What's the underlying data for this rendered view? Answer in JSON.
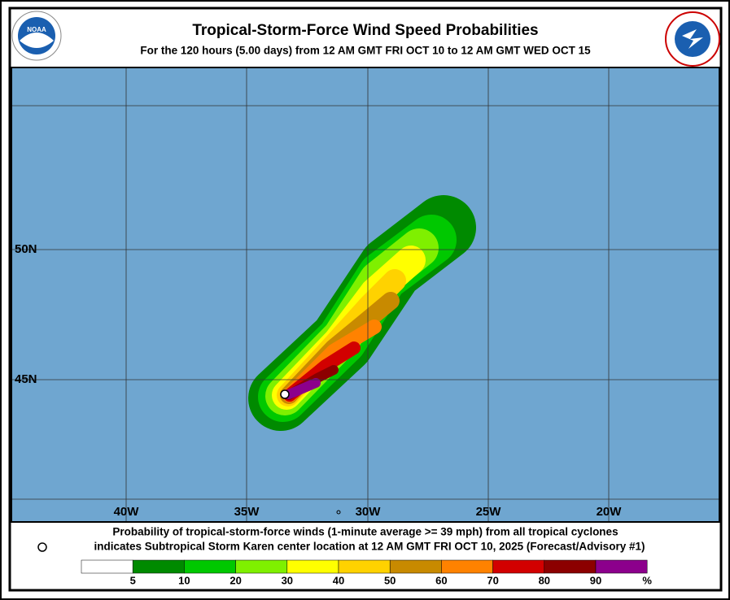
{
  "header": {
    "title": "Tropical-Storm-Force Wind Speed Probabilities",
    "subtitle": "For the 120 hours (5.00 days) from 12 AM GMT FRI OCT 10 to 12 AM GMT WED OCT 15",
    "logo_text": "NOAA"
  },
  "map": {
    "longitude_labels": [
      "40W",
      "35W",
      "30W",
      "25W",
      "20W"
    ],
    "latitude_labels": [
      "50N",
      "45N"
    ]
  },
  "caption": {
    "line1": "Probability of tropical-storm-force winds (1-minute average >= 39 mph) from all tropical cyclones",
    "line2": "indicates Subtropical Storm Karen center location at 12 AM GMT FRI OCT 10, 2025 (Forecast/Advisory #1)"
  },
  "legend": {
    "colors": [
      "#ffffff",
      "#008a00",
      "#00c800",
      "#7ff000",
      "#ffff00",
      "#ffd200",
      "#c88a00",
      "#ff8200",
      "#d20000",
      "#8c0000",
      "#8c008c"
    ],
    "labels": [
      5,
      10,
      20,
      30,
      40,
      50,
      60,
      70,
      80,
      90
    ],
    "unit": "%"
  }
}
